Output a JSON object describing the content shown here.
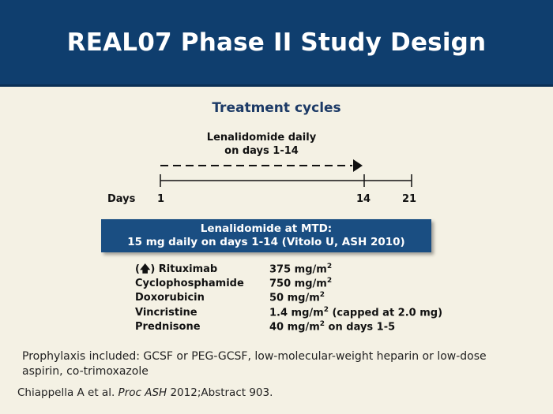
{
  "title": "REAL07 Phase II Study Design",
  "subtitle": "Treatment cycles",
  "timeline": {
    "drug_label_line1": "Lenalidomide daily",
    "drug_label_line2": "on days 1-14",
    "days_label": "Days",
    "ticks": [
      "1",
      "14",
      "21"
    ]
  },
  "mtd_box": {
    "line1": "Lenalidomide at MTD:",
    "line2": "15 mg daily on days 1-14 (Vitolo U, ASH 2010)"
  },
  "regimen": [
    {
      "prefix": "(",
      "arrow": "🡅",
      "suffix": ") Rituximab",
      "dose": "375 mg/m",
      "sup": "2",
      "dose_suffix": ""
    },
    {
      "prefix": "",
      "arrow": "",
      "suffix": "Cyclophosphamide",
      "dose": "750 mg/m",
      "sup": "2",
      "dose_suffix": ""
    },
    {
      "prefix": "",
      "arrow": "",
      "suffix": "Doxorubicin",
      "dose": "50 mg/m",
      "sup": "2",
      "dose_suffix": ""
    },
    {
      "prefix": "",
      "arrow": "",
      "suffix": "Vincristine",
      "dose": "1.4 mg/m",
      "sup": "2",
      "dose_suffix": " (capped at 2.0 mg)"
    },
    {
      "prefix": "",
      "arrow": "",
      "suffix": "Prednisone",
      "dose": "40 mg/m",
      "sup": "2",
      "dose_suffix": " on days 1-5"
    }
  ],
  "prophylaxis": "Prophylaxis included: GCSF or PEG-GCSF, low-molecular-weight heparin or low-dose aspirin, co-trimoxazole",
  "citation": {
    "authors": "Chiappella A et al. ",
    "journal": "Proc ASH",
    "rest": " 2012;Abstract 903."
  },
  "colors": {
    "header_bg": "#0f3e6e",
    "box_bg": "#1a4e82",
    "page_bg": "#f4f1e4",
    "subtitle": "#1c3a66"
  }
}
